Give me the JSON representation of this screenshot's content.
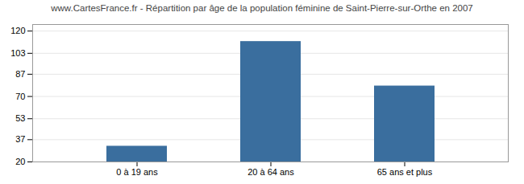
{
  "chart_data": {
    "type": "bar",
    "title": "www.CartesFrance.fr - Répartition par âge de la population féminine de Saint-Pierre-sur-Orthe en 2007",
    "categories": [
      "0 à 19 ans",
      "20 à 64 ans",
      "65 ans et plus"
    ],
    "values": [
      32,
      112,
      78
    ],
    "color": "#3A6E9E",
    "ylim": [
      20,
      125
    ],
    "yticks": [
      20,
      37,
      53,
      70,
      87,
      103,
      120
    ],
    "grid": true
  }
}
